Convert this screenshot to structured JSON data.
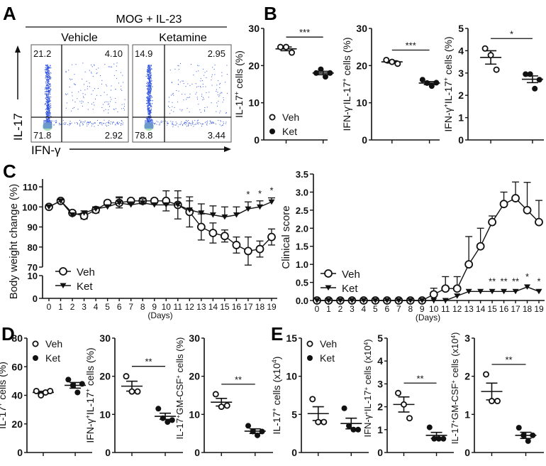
{
  "panel_letters": [
    "A",
    "B",
    "C",
    "D",
    "E"
  ],
  "panel_a": {
    "header": "MOG + IL-23",
    "columns": [
      "Vehicle",
      "Ketamine"
    ],
    "y_axis_label": "IL-17",
    "x_axis_label": "IFN-γ",
    "quadrants": [
      {
        "ul": "21.2",
        "ur": "4.10",
        "ll": "71.8",
        "lr": "2.92"
      },
      {
        "ul": "14.9",
        "ur": "2.95",
        "ll": "78.8",
        "lr": "3.44"
      }
    ]
  },
  "legend": {
    "veh": "Veh",
    "ket": "Ket"
  },
  "colors": {
    "ink": "#111111",
    "flow_dot": "#3355dd",
    "flow_dense": "#9fd8b0"
  },
  "chart_data": [
    {
      "id": "B1",
      "type": "scatter",
      "ylabel": "IL-17^{+} cells (%)",
      "ylim": [
        0,
        30
      ],
      "yticks": [
        0,
        10,
        20,
        30
      ],
      "legend": true,
      "sig": "***",
      "groups": [
        {
          "name": "Veh",
          "values": [
            25,
            25,
            23.5
          ],
          "mean": 24.5,
          "sem": 0.5
        },
        {
          "name": "Ket",
          "values": [
            18,
            19,
            17,
            18
          ],
          "mean": 18,
          "sem": 0.45
        }
      ]
    },
    {
      "id": "B2",
      "type": "scatter",
      "ylabel": "IFN-γ^{-}IL-17^{+} cells (%)",
      "ylim": [
        0,
        30
      ],
      "yticks": [
        0,
        10,
        20,
        30
      ],
      "sig": "***",
      "groups": [
        {
          "name": "Veh",
          "values": [
            21.5,
            21,
            20.5
          ],
          "mean": 21,
          "sem": 0.3
        },
        {
          "name": "Ket",
          "values": [
            16.2,
            15.3,
            14.5,
            15.4
          ],
          "mean": 15.3,
          "sem": 0.4
        }
      ]
    },
    {
      "id": "B3",
      "type": "scatter",
      "ylabel": "IFN-γ^{+}IL-17^{+} cells (%)",
      "ylim": [
        0,
        5
      ],
      "yticks": [
        0,
        1,
        2,
        3,
        4,
        5
      ],
      "sig": "*",
      "groups": [
        {
          "name": "Veh",
          "values": [
            4.1,
            3.8,
            3.15
          ],
          "mean": 3.7,
          "sem": 0.3
        },
        {
          "name": "Ket",
          "values": [
            2.95,
            2.95,
            2.3,
            2.7
          ],
          "mean": 2.72,
          "sem": 0.15
        }
      ]
    },
    {
      "id": "C1",
      "type": "line",
      "ylabel": "Body weight change (%)",
      "xlabel": "(Days)",
      "x": [
        0,
        1,
        2,
        3,
        4,
        5,
        6,
        7,
        8,
        9,
        10,
        11,
        12,
        13,
        14,
        15,
        16,
        17,
        18,
        19
      ],
      "yticks_upper": [
        70,
        80,
        90,
        100,
        110
      ],
      "yticks_lower": [
        0,
        10
      ],
      "ylim_upper": [
        70,
        110
      ],
      "ylim_lower": [
        0,
        10
      ],
      "series": [
        {
          "name": "Veh",
          "values": [
            100,
            103,
            97,
            95.5,
            98.5,
            102,
            102,
            103,
            103,
            103,
            103,
            101,
            97.5,
            90,
            87,
            85.5,
            81,
            78,
            79,
            85
          ],
          "sem": [
            0.5,
            0.5,
            1,
            1.5,
            1.5,
            1,
            2.5,
            1,
            1.5,
            1,
            5,
            7,
            7.5,
            6.5,
            5,
            3,
            4,
            7,
            4,
            4
          ]
        },
        {
          "name": "Ket",
          "values": [
            100,
            103,
            96,
            97,
            99,
            100,
            102,
            101,
            102,
            101,
            101,
            101,
            98.5,
            97,
            96,
            95,
            96,
            99,
            100,
            102.5
          ],
          "sem": [
            0.5,
            0.5,
            1,
            1,
            1,
            1,
            3,
            1.5,
            2,
            1,
            1,
            3.5,
            4.5,
            4.5,
            4.5,
            5,
            4,
            3.5,
            3,
            2
          ]
        }
      ],
      "significance": [
        {
          "day": 17,
          "label": "*"
        },
        {
          "day": 18,
          "label": "*"
        },
        {
          "day": 19,
          "label": "*"
        }
      ]
    },
    {
      "id": "C2",
      "type": "line",
      "ylabel": "Clinical score",
      "xlabel": "(Days)",
      "x": [
        0,
        1,
        2,
        3,
        4,
        5,
        6,
        7,
        8,
        9,
        10,
        11,
        12,
        13,
        14,
        15,
        16,
        17,
        18,
        19
      ],
      "ylim": [
        0,
        3.5
      ],
      "yticks": [
        "0.0",
        "0.5",
        "1.0",
        "1.5",
        "2.0",
        "2.5",
        "3.0",
        "3.5"
      ],
      "series": [
        {
          "name": "Veh",
          "values": [
            0,
            0,
            0,
            0,
            0,
            0,
            0,
            0,
            0,
            0,
            0.17,
            0.33,
            0.33,
            1.0,
            1.5,
            2.17,
            2.67,
            2.83,
            2.5,
            2.17
          ],
          "sem": [
            0,
            0,
            0,
            0,
            0,
            0,
            0,
            0,
            0,
            0,
            0.17,
            0.33,
            0.33,
            0.77,
            0.5,
            0.17,
            0.33,
            0.45,
            0.77,
            0.6
          ]
        },
        {
          "name": "Ket",
          "values": [
            0,
            0,
            0,
            0,
            0,
            0,
            0,
            0,
            0,
            0,
            0,
            0,
            0.125,
            0.25,
            0.25,
            0.25,
            0.25,
            0.25,
            0.375,
            0.25
          ],
          "sem": [
            0,
            0,
            0,
            0,
            0,
            0,
            0,
            0,
            0,
            0,
            0,
            0,
            0,
            0,
            0,
            0,
            0,
            0,
            0,
            0
          ]
        }
      ],
      "significance": [
        {
          "day": 15,
          "label": "**"
        },
        {
          "day": 16,
          "label": "**"
        },
        {
          "day": 17,
          "label": "**"
        },
        {
          "day": 18,
          "label": "*"
        },
        {
          "day": 19,
          "label": "*"
        }
      ]
    },
    {
      "id": "D1",
      "type": "scatter",
      "ylabel": "IL-17^{+} cells (%)",
      "ylim": [
        0,
        80
      ],
      "yticks": [
        0,
        20,
        40,
        60,
        80
      ],
      "legend": true,
      "sig": "",
      "groups": [
        {
          "name": "Veh",
          "values": [
            43,
            40,
            42,
            43
          ],
          "mean": 42,
          "sem": 0.8
        },
        {
          "name": "Ket",
          "values": [
            51,
            47,
            42,
            48
          ],
          "mean": 47,
          "sem": 2
        }
      ]
    },
    {
      "id": "D2",
      "type": "scatter",
      "ylabel": "IFN-γ^{+}IL-17^{+} cells (%)",
      "ylim": [
        0,
        30
      ],
      "yticks": [
        0,
        10,
        20,
        30
      ],
      "sig": "**",
      "groups": [
        {
          "name": "Veh",
          "values": [
            20,
            16,
            16
          ],
          "mean": 17.4,
          "sem": 1.3
        },
        {
          "name": "Ket",
          "values": [
            11.5,
            9,
            8,
            8.5
          ],
          "mean": 9.5,
          "sem": 0.8
        }
      ]
    },
    {
      "id": "D3",
      "type": "scatter",
      "ylabel": "IL-17^{+}GM-CSF^{+} cells (%)",
      "ylim": [
        0,
        30
      ],
      "yticks": [
        0,
        10,
        20,
        30
      ],
      "sig": "**",
      "groups": [
        {
          "name": "Veh",
          "values": [
            15.3,
            12,
            12.3
          ],
          "mean": 13.2,
          "sem": 1
        },
        {
          "name": "Ket",
          "values": [
            7,
            5.5,
            4.5,
            5.5
          ],
          "mean": 5.6,
          "sem": 0.6
        }
      ]
    },
    {
      "id": "E1",
      "type": "scatter",
      "ylabel": "IL-17^{+} cells (x10^{4})",
      "ylim": [
        0,
        15
      ],
      "yticks": [
        0,
        5,
        10,
        15
      ],
      "legend": true,
      "sig": "",
      "groups": [
        {
          "name": "Veh",
          "values": [
            7,
            4,
            4
          ],
          "mean": 5.1,
          "sem": 0.9
        },
        {
          "name": "Ket",
          "values": [
            5.8,
            3.5,
            3,
            3
          ],
          "mean": 3.8,
          "sem": 0.7
        }
      ]
    },
    {
      "id": "E2",
      "type": "scatter",
      "ylabel": "IFN-γ^{+}IL-17^{+} cells (x10^{4})",
      "ylim": [
        0,
        5
      ],
      "yticks": [
        0,
        1,
        2,
        3,
        4,
        5
      ],
      "sig": "**",
      "groups": [
        {
          "name": "Veh",
          "values": [
            2.6,
            2.1,
            1.5
          ],
          "mean": 2.1,
          "sem": 0.33
        },
        {
          "name": "Ket",
          "values": [
            1.1,
            0.6,
            0.6,
            0.6
          ],
          "mean": 0.75,
          "sem": 0.13
        }
      ]
    },
    {
      "id": "E3",
      "type": "scatter",
      "ylabel": "IL-17^{+}GM-CSF^{+} cells (x10^{4})",
      "ylim": [
        0,
        3
      ],
      "yticks": [
        0,
        1,
        2,
        3
      ],
      "sig": "**",
      "groups": [
        {
          "name": "Veh",
          "values": [
            2.05,
            1.35,
            1.35
          ],
          "mean": 1.6,
          "sem": 0.22
        },
        {
          "name": "Ket",
          "values": [
            0.65,
            0.45,
            0.3,
            0.45
          ],
          "mean": 0.45,
          "sem": 0.08
        }
      ]
    }
  ]
}
